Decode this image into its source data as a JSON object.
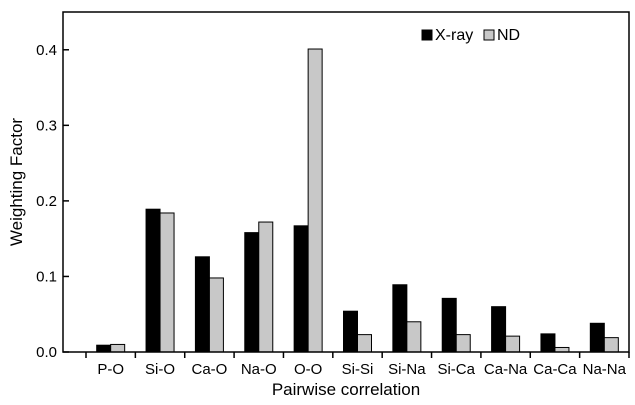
{
  "chart_data": {
    "type": "bar",
    "title": "",
    "xlabel": "Pairwise correlation",
    "ylabel": "Weighting Factor",
    "categories": [
      "P-O",
      "Si-O",
      "Ca-O",
      "Na-O",
      "O-O",
      "Si-Si",
      "Si-Na",
      "Si-Ca",
      "Ca-Na",
      "Ca-Ca",
      "Na-Na"
    ],
    "series": [
      {
        "name": "X-ray",
        "color": "#000000",
        "values": [
          0.009,
          0.189,
          0.126,
          0.158,
          0.167,
          0.054,
          0.089,
          0.071,
          0.06,
          0.024,
          0.038
        ]
      },
      {
        "name": "ND",
        "color": "#c8c8c8",
        "values": [
          0.01,
          0.184,
          0.098,
          0.172,
          0.401,
          0.023,
          0.04,
          0.023,
          0.021,
          0.006,
          0.019
        ]
      }
    ],
    "ylim": [
      0,
      0.45
    ],
    "yticks": [
      "0.0",
      "0.1",
      "0.2",
      "0.3",
      "0.4"
    ],
    "ytick_values": [
      0,
      0.1,
      0.2,
      0.3,
      0.4
    ],
    "grid": false,
    "legend_position": "top-right"
  }
}
